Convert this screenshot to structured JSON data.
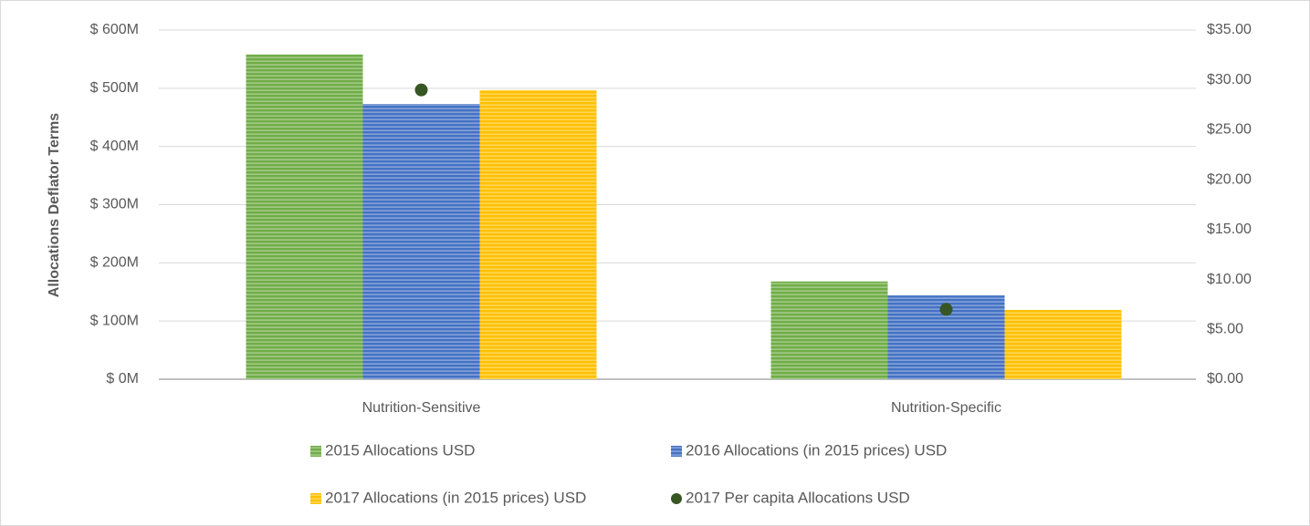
{
  "chart_data": {
    "type": "bar",
    "categories": [
      "Nutrition-Sensitive",
      "Nutrition-Specific"
    ],
    "ylabel": "Allocations Deflator Terms",
    "ylim": [
      0,
      600
    ],
    "yticks": [
      {
        "value": 0,
        "label": "$ 0M"
      },
      {
        "value": 100,
        "label": "$ 100M"
      },
      {
        "value": 200,
        "label": "$ 200M"
      },
      {
        "value": 300,
        "label": "$ 300M"
      },
      {
        "value": 400,
        "label": "$ 400M"
      },
      {
        "value": 500,
        "label": "$ 500M"
      },
      {
        "value": 600,
        "label": "$ 600M"
      }
    ],
    "y2lim": [
      0,
      35
    ],
    "y2ticks": [
      {
        "value": 0,
        "label": "$0.00"
      },
      {
        "value": 5,
        "label": "$5.00"
      },
      {
        "value": 10,
        "label": "$10.00"
      },
      {
        "value": 15,
        "label": "$15.00"
      },
      {
        "value": 20,
        "label": "$20.00"
      },
      {
        "value": 25,
        "label": "$25.00"
      },
      {
        "value": 30,
        "label": "$30.00"
      },
      {
        "value": 35,
        "label": "$35.00"
      }
    ],
    "grid": true,
    "legend": "bottom",
    "series": [
      {
        "name": "2015 Allocations USD",
        "color": "#70ad47",
        "values": [
          558,
          168
        ]
      },
      {
        "name": "2016 Allocations (in 2015 prices) USD",
        "color": "#4472c4",
        "values": [
          473,
          144
        ]
      },
      {
        "name": "2017 Allocations (in 2015 prices) USD",
        "color": "#ffc000",
        "values": [
          497,
          119
        ]
      },
      {
        "name": "2017 Per capita Allocations USD",
        "color": "#375623",
        "type": "scatter",
        "axis": "y2",
        "values": [
          29.0,
          7.0
        ]
      }
    ]
  }
}
